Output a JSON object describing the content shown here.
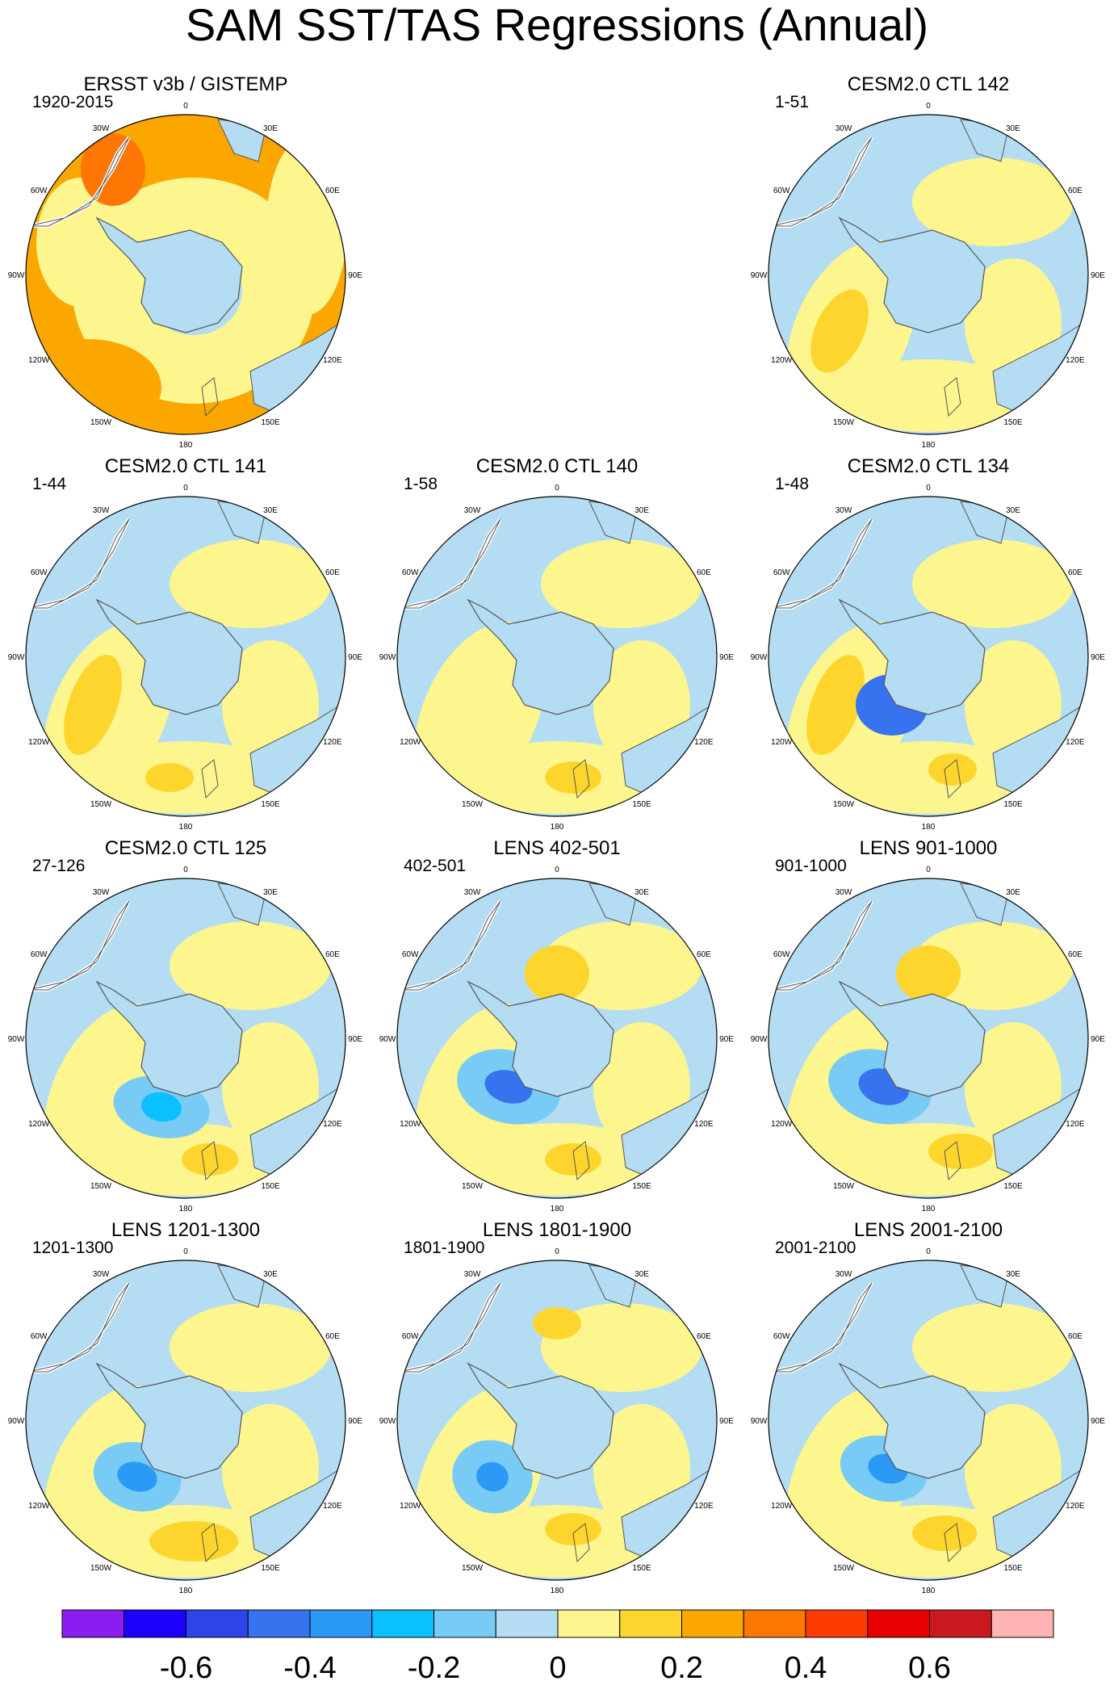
{
  "title": "SAM SST/TAS Regressions (Annual)",
  "lon_labels": [
    "0",
    "30E",
    "60E",
    "90E",
    "120E",
    "150E",
    "180",
    "150W",
    "120W",
    "90W",
    "60W",
    "30W"
  ],
  "palette": {
    "ocean_light_blue": "#b4dcf2",
    "ocean_pale_yellow": "#fdf68f",
    "gold": "#fed52c",
    "orange": "#fba700",
    "coast": "#ffffff"
  },
  "chart_data": {
    "type": "heatmap",
    "projection": "south polar stereographic",
    "variable": "SST/TAS regression on SAM index (Annual)",
    "panels": [
      {
        "title": "ERSST v3b / GISTEMP",
        "period": "1920-2015"
      },
      {
        "title": "CESM2.0 CTL 142",
        "period": "1-51"
      },
      {
        "title": "CESM2.0 CTL 141",
        "period": "1-44"
      },
      {
        "title": "CESM2.0 CTL 140",
        "period": "1-58"
      },
      {
        "title": "CESM2.0 CTL 134",
        "period": "1-48"
      },
      {
        "title": "CESM2.0 CTL 125",
        "period": "27-126"
      },
      {
        "title": "LENS 402-501",
        "period": "402-501"
      },
      {
        "title": "LENS 901-1000",
        "period": "901-1000"
      },
      {
        "title": "LENS 1201-1300",
        "period": "1201-1300"
      },
      {
        "title": "LENS 1801-1900",
        "period": "1801-1900"
      },
      {
        "title": "LENS 2001-2100",
        "period": "2001-2100"
      }
    ],
    "colorbar": {
      "levels": [
        -0.7,
        -0.6,
        -0.5,
        -0.4,
        -0.3,
        -0.2,
        -0.1,
        0,
        0.1,
        0.2,
        0.3,
        0.4,
        0.5,
        0.6,
        0.7
      ],
      "colors": [
        "#8a1ef0",
        "#1e00ff",
        "#2e43e8",
        "#3773ee",
        "#2b9af7",
        "#0bc0ff",
        "#78cbf4",
        "#b4dcf2",
        "#fdf68f",
        "#fed52c",
        "#fba700",
        "#fe7604",
        "#fe3c00",
        "#e60000",
        "#c8191e",
        "#ffb4b4"
      ],
      "tick_labels": [
        "-0.6",
        "-0.4",
        "-0.2",
        "0",
        "0.2",
        "0.4",
        "0.6"
      ],
      "tick_values": [
        -0.6,
        -0.4,
        -0.2,
        0,
        0.2,
        0.4,
        0.6
      ]
    }
  }
}
